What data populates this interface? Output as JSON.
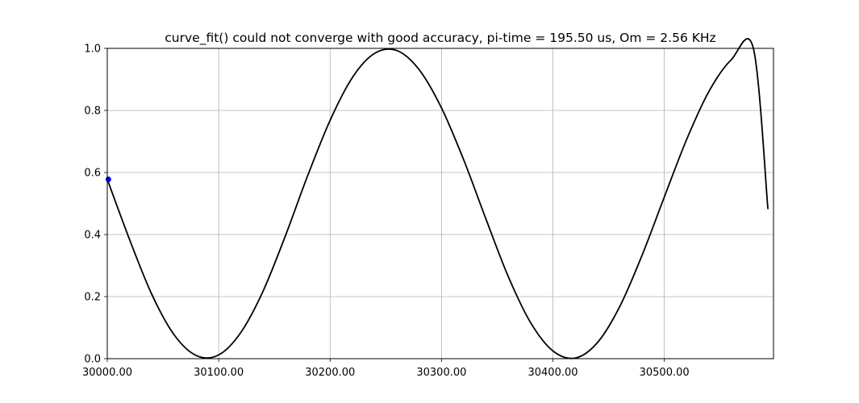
{
  "chart_data": {
    "type": "line",
    "title": "curve_fit() could not converge with good accuracy, pi-time = 195.50 us, Om = 2.56 KHz",
    "xlabel": "",
    "ylabel": "",
    "xlim": [
      30000,
      30598
    ],
    "ylim": [
      0.0,
      1.0
    ],
    "grid": true,
    "x_ticks": [
      30000,
      30100,
      30200,
      30300,
      30400,
      30500
    ],
    "x_tick_labels": [
      "30000.00",
      "30100.00",
      "30200.00",
      "30300.00",
      "30400.00",
      "30500.00"
    ],
    "y_ticks": [
      0.0,
      0.2,
      0.4,
      0.6,
      0.8,
      1.0
    ],
    "y_tick_labels": [
      "0.0",
      "0.2",
      "0.4",
      "0.6",
      "0.8",
      "1.0"
    ],
    "series": [
      {
        "kind": "fit-line",
        "color": "#000000",
        "x": [
          30000,
          30020,
          30040,
          30060,
          30080,
          30100,
          30120,
          30140,
          30160,
          30180,
          30200,
          30220,
          30240,
          30260,
          30280,
          30300,
          30320,
          30340,
          30360,
          30380,
          30400,
          30420,
          30440,
          30460,
          30480,
          30500,
          30520,
          30540,
          30560,
          30580,
          30593
        ],
        "y": [
          0.578,
          0.384,
          0.207,
          0.077,
          0.01,
          0.012,
          0.085,
          0.219,
          0.397,
          0.591,
          0.768,
          0.906,
          0.984,
          0.993,
          0.931,
          0.808,
          0.64,
          0.449,
          0.264,
          0.116,
          0.025,
          0.002,
          0.052,
          0.168,
          0.333,
          0.521,
          0.706,
          0.861,
          0.963,
          0.999,
          0.482
        ]
      },
      {
        "kind": "data-points",
        "color": "#0000ff",
        "x": [
          30001
        ],
        "y": [
          0.578
        ]
      }
    ]
  }
}
